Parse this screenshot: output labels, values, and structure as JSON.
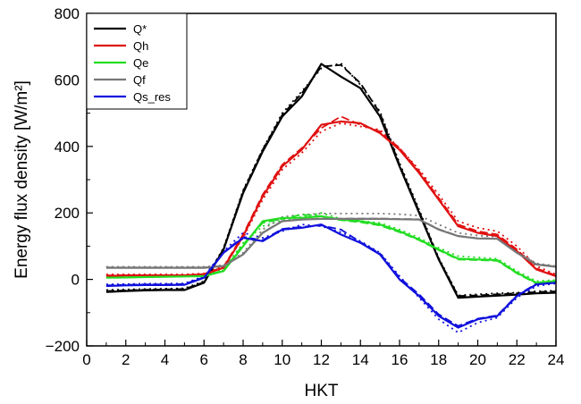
{
  "chart_data": {
    "type": "line",
    "xlabel": "HKT",
    "ylabel": "Energy flux density [W/m²]",
    "xlim": [
      0,
      24
    ],
    "ylim": [
      -200,
      800
    ],
    "xticks": [
      0,
      2,
      4,
      6,
      8,
      10,
      12,
      14,
      16,
      18,
      20,
      22,
      24
    ],
    "xtick_labels": [
      "0",
      "2",
      "4",
      "6",
      "8",
      "10",
      "12",
      "14",
      "16",
      "18",
      "20",
      "22",
      "24"
    ],
    "yticks": [
      -200,
      0,
      200,
      400,
      600,
      800
    ],
    "ytick_labels": [
      "−200",
      "0",
      "200",
      "400",
      "600",
      "800"
    ],
    "grid": false,
    "legend_position": "top-left",
    "line_styles_per_series": [
      "solid",
      "dashed",
      "dotted"
    ],
    "series": [
      {
        "name": "Q*",
        "color": "#000000",
        "x": [
          1,
          2,
          3,
          4,
          5,
          6,
          7,
          8,
          9,
          10,
          11,
          12,
          13,
          14,
          15,
          16,
          17,
          18,
          19,
          20,
          21,
          22,
          23,
          24
        ],
        "solid": [
          -38,
          -35,
          -33,
          -32,
          -32,
          -10,
          90,
          260,
          385,
          490,
          550,
          648,
          610,
          575,
          490,
          340,
          200,
          60,
          -55,
          -52,
          -49,
          -46,
          -42,
          -40
        ],
        "dashed": [
          -35,
          -33,
          -31,
          -30,
          -29,
          -8,
          92,
          265,
          390,
          495,
          560,
          640,
          645,
          590,
          500,
          345,
          205,
          62,
          -50,
          -48,
          -45,
          -42,
          -38,
          -36
        ],
        "dotted": [
          -32,
          -30,
          -29,
          -28,
          -27,
          -5,
          95,
          268,
          392,
          500,
          565,
          635,
          650,
          585,
          505,
          350,
          210,
          65,
          -48,
          -45,
          -42,
          -40,
          -36,
          -34
        ]
      },
      {
        "name": "Qh",
        "color": "#e01010",
        "x": [
          1,
          2,
          3,
          4,
          5,
          6,
          7,
          8,
          9,
          10,
          11,
          12,
          13,
          14,
          15,
          16,
          17,
          18,
          19,
          20,
          21,
          22,
          23,
          24
        ],
        "solid": [
          10,
          12,
          12,
          12,
          12,
          15,
          35,
          130,
          250,
          340,
          390,
          465,
          475,
          470,
          440,
          390,
          320,
          240,
          160,
          140,
          130,
          85,
          30,
          10
        ],
        "dashed": [
          12,
          13,
          13,
          13,
          13,
          16,
          38,
          135,
          255,
          345,
          395,
          455,
          490,
          465,
          445,
          395,
          325,
          245,
          165,
          145,
          135,
          90,
          33,
          12
        ],
        "dotted": [
          15,
          15,
          15,
          15,
          15,
          18,
          40,
          125,
          240,
          330,
          380,
          445,
          470,
          460,
          450,
          395,
          330,
          255,
          175,
          155,
          145,
          100,
          40,
          15
        ]
      },
      {
        "name": "Qe",
        "color": "#22dd22",
        "x": [
          1,
          2,
          3,
          4,
          5,
          6,
          7,
          8,
          9,
          10,
          11,
          12,
          13,
          14,
          15,
          16,
          17,
          18,
          19,
          20,
          21,
          22,
          23,
          24
        ],
        "solid": [
          5,
          6,
          7,
          8,
          9,
          10,
          25,
          100,
          175,
          185,
          185,
          190,
          180,
          175,
          165,
          145,
          120,
          90,
          62,
          60,
          58,
          20,
          -10,
          -5
        ],
        "dashed": [
          6,
          7,
          8,
          9,
          10,
          11,
          27,
          105,
          170,
          182,
          195,
          190,
          178,
          172,
          162,
          142,
          118,
          88,
          60,
          58,
          56,
          18,
          -12,
          -6
        ],
        "dotted": [
          8,
          9,
          10,
          11,
          12,
          13,
          30,
          110,
          160,
          178,
          188,
          200,
          182,
          176,
          170,
          150,
          125,
          95,
          70,
          66,
          62,
          25,
          -5,
          -2
        ]
      },
      {
        "name": "Qf",
        "color": "#777777",
        "x": [
          1,
          2,
          3,
          4,
          5,
          6,
          7,
          8,
          9,
          10,
          11,
          12,
          13,
          14,
          15,
          16,
          17,
          18,
          19,
          20,
          21,
          22,
          23,
          24
        ],
        "solid": [
          35,
          35,
          35,
          35,
          35,
          35,
          40,
          75,
          140,
          175,
          180,
          182,
          182,
          182,
          182,
          181,
          180,
          150,
          130,
          123,
          122,
          80,
          45,
          38
        ],
        "dashed": [
          36,
          36,
          36,
          36,
          36,
          36,
          41,
          76,
          141,
          176,
          181,
          183,
          183,
          183,
          183,
          182,
          181,
          151,
          131,
          124,
          123,
          81,
          46,
          39
        ],
        "dotted": [
          38,
          38,
          38,
          38,
          38,
          38,
          43,
          80,
          150,
          188,
          195,
          198,
          198,
          198,
          198,
          196,
          192,
          165,
          140,
          132,
          128,
          85,
          48,
          40
        ]
      },
      {
        "name": "Qs_res",
        "color": "#1010dd",
        "x": [
          1,
          2,
          3,
          4,
          5,
          6,
          7,
          8,
          9,
          10,
          11,
          12,
          13,
          14,
          15,
          16,
          17,
          18,
          19,
          20,
          21,
          22,
          23,
          24
        ],
        "solid": [
          -20,
          -18,
          -17,
          -17,
          -16,
          5,
          80,
          125,
          115,
          150,
          155,
          165,
          135,
          110,
          75,
          0,
          -50,
          -110,
          -145,
          -120,
          -110,
          -50,
          -15,
          -10
        ],
        "dashed": [
          -18,
          -16,
          -15,
          -15,
          -14,
          7,
          82,
          128,
          118,
          152,
          158,
          162,
          150,
          112,
          78,
          5,
          -45,
          -105,
          -140,
          -118,
          -108,
          -48,
          -13,
          -8
        ],
        "dotted": [
          -15,
          -14,
          -13,
          -13,
          -12,
          10,
          85,
          140,
          125,
          145,
          165,
          160,
          142,
          115,
          80,
          10,
          -55,
          -120,
          -160,
          -130,
          -115,
          -55,
          -20,
          -12
        ]
      }
    ]
  }
}
